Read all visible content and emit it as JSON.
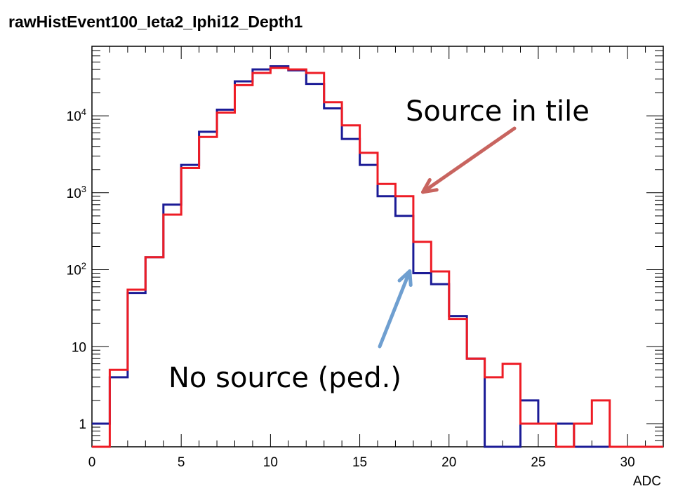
{
  "chart_data": {
    "type": "histogram",
    "title": "rawHistEvent100_Ieta2_Iphi12_Depth1",
    "xlabel": "ADC",
    "ylabel": "",
    "xlim": [
      0,
      32
    ],
    "ylim": [
      0.5,
      80000
    ],
    "yscale": "log",
    "grid": false,
    "legend": "none",
    "x_ticks": [
      0,
      5,
      10,
      15,
      20,
      25,
      30
    ],
    "y_ticks": [
      {
        "value": 1,
        "label": "1"
      },
      {
        "value": 10,
        "label": "10"
      },
      {
        "value": 100,
        "label": "10",
        "exp": "2"
      },
      {
        "value": 1000,
        "label": "10",
        "exp": "3"
      },
      {
        "value": 10000,
        "label": "10",
        "exp": "4"
      }
    ],
    "bin_edges": [
      0,
      1,
      2,
      3,
      4,
      5,
      6,
      7,
      8,
      9,
      10,
      11,
      12,
      13,
      14,
      15,
      16,
      17,
      18,
      19,
      20,
      21,
      22,
      23,
      24,
      25,
      26,
      27,
      28,
      29,
      30,
      31,
      32
    ],
    "series": [
      {
        "color": "#1b1b96",
        "values": [
          1,
          4,
          50,
          145,
          700,
          2300,
          6200,
          12000,
          28000,
          40000,
          44000,
          39000,
          26000,
          12500,
          5000,
          2300,
          900,
          500,
          90,
          65,
          25,
          7,
          0.5,
          0.5,
          2,
          1,
          1,
          0.5,
          0.5,
          0.5,
          0.5,
          0.5
        ]
      },
      {
        "color": "#ee1c25",
        "values": [
          0.5,
          5,
          55,
          145,
          520,
          2100,
          5300,
          11000,
          25000,
          36000,
          42000,
          40000,
          36000,
          15000,
          7500,
          3300,
          1300,
          900,
          230,
          95,
          23,
          7,
          4,
          6,
          1,
          1,
          0.5,
          1,
          2,
          0.5,
          0.5,
          0.5
        ]
      }
    ],
    "annotations": [
      {
        "text": "Source in tile",
        "color": "#000000",
        "arrow_color": "#c8645f",
        "points_to": {
          "x": 18.3,
          "y": 900
        }
      },
      {
        "text": "No source (ped.)",
        "color": "#000000",
        "arrow_color": "#6f9fd0",
        "points_to": {
          "x": 17.8,
          "y": 100
        }
      }
    ]
  }
}
